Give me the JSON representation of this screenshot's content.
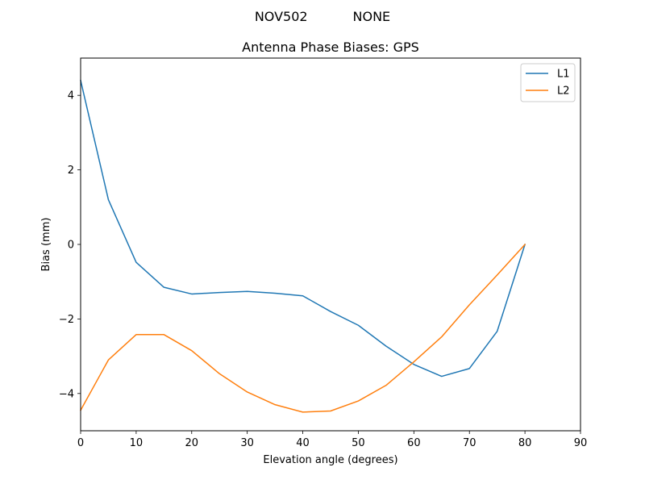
{
  "chart_data": {
    "type": "line",
    "suptitle": "NOV502           NONE",
    "title": "Antenna Phase Biases: GPS",
    "xlabel": "Elevation angle (degrees)",
    "ylabel": "Bias (mm)",
    "xlim": [
      0,
      90
    ],
    "ylim": [
      -5,
      5
    ],
    "xticks": [
      0,
      10,
      20,
      30,
      40,
      50,
      60,
      70,
      80,
      90
    ],
    "yticks": [
      -4,
      -2,
      0,
      2,
      4
    ],
    "xtick_labels": [
      "0",
      "10",
      "20",
      "30",
      "40",
      "50",
      "60",
      "70",
      "80",
      "90"
    ],
    "ytick_labels": [
      "−4",
      "−2",
      "0",
      "2",
      "4"
    ],
    "grid": false,
    "legend_position": "top-right",
    "x": [
      0,
      5,
      10,
      15,
      20,
      25,
      30,
      35,
      40,
      45,
      50,
      55,
      60,
      65,
      70,
      75,
      80
    ],
    "series": [
      {
        "name": "L1",
        "color": "#1f77b4",
        "values": [
          4.4,
          1.2,
          -0.48,
          -1.15,
          -1.33,
          -1.29,
          -1.26,
          -1.31,
          -1.38,
          -1.8,
          -2.17,
          -2.73,
          -3.22,
          -3.54,
          -3.33,
          -2.33,
          0.0
        ]
      },
      {
        "name": "L2",
        "color": "#ff7f0e",
        "values": [
          -4.45,
          -3.1,
          -2.42,
          -2.42,
          -2.85,
          -3.47,
          -3.96,
          -4.3,
          -4.5,
          -4.47,
          -4.2,
          -3.78,
          -3.15,
          -2.48,
          -1.62,
          -0.82,
          0.0
        ]
      }
    ]
  }
}
